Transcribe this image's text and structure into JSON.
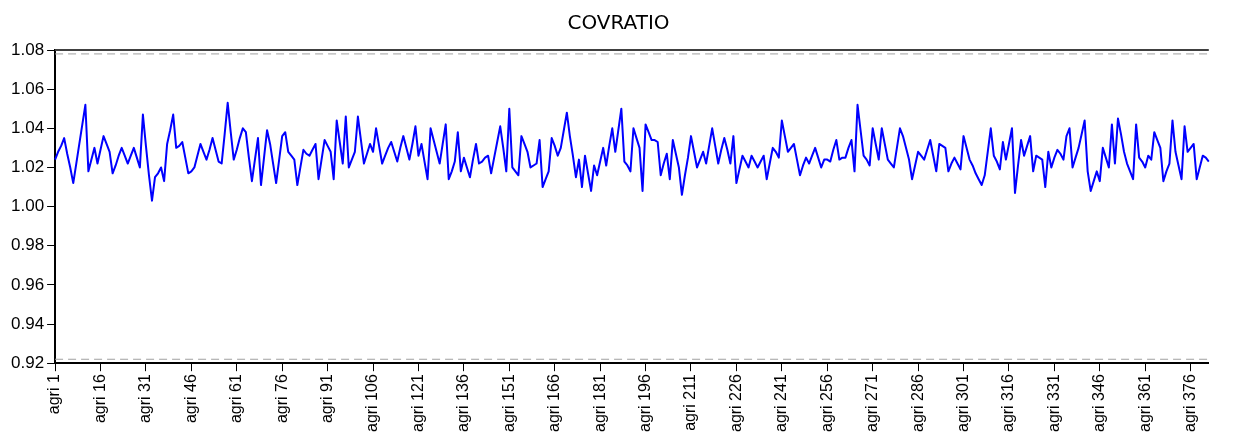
{
  "chart_data": {
    "type": "line",
    "title": "COVRATIO",
    "categories": [
      "agri 1",
      null,
      null,
      null,
      null,
      null,
      null,
      null,
      null,
      null,
      null,
      null,
      null,
      null,
      null,
      "agri 16",
      null,
      null,
      null,
      null,
      null,
      null,
      null,
      null,
      null,
      null,
      null,
      null,
      null,
      null,
      "agri 31",
      null,
      null,
      null,
      null,
      null,
      null,
      null,
      null,
      null,
      null,
      null,
      null,
      null,
      null,
      "agri 46",
      null,
      null,
      null,
      null,
      null,
      null,
      null,
      null,
      null,
      null,
      null,
      null,
      null,
      null,
      "agri 61",
      null,
      null,
      null,
      null,
      null,
      null,
      null,
      null,
      null,
      null,
      null,
      null,
      null,
      null,
      "agri 76",
      null,
      null,
      null,
      null,
      null,
      null,
      null,
      null,
      null,
      null,
      null,
      null,
      null,
      null,
      "agri 91",
      null,
      null,
      null,
      null,
      null,
      null,
      null,
      null,
      null,
      null,
      null,
      null,
      null,
      null,
      "agri 106",
      null,
      null,
      null,
      null,
      null,
      null,
      null,
      null,
      null,
      null,
      null,
      null,
      null,
      null,
      "agri 121",
      null,
      null,
      null,
      null,
      null,
      null,
      null,
      null,
      null,
      null,
      null,
      null,
      null,
      null,
      "agri 136",
      null,
      null,
      null,
      null,
      null,
      null,
      null,
      null,
      null,
      null,
      null,
      null,
      null,
      null,
      "agri 151",
      null,
      null,
      null,
      null,
      null,
      null,
      null,
      null,
      null,
      null,
      null,
      null,
      null,
      null,
      "agri 166",
      null,
      null,
      null,
      null,
      null,
      null,
      null,
      null,
      null,
      null,
      null,
      null,
      null,
      null,
      "agri 181",
      null,
      null,
      null,
      null,
      null,
      null,
      null,
      null,
      null,
      null,
      null,
      null,
      null,
      null,
      "agri 196",
      null,
      null,
      null,
      null,
      null,
      null,
      null,
      null,
      null,
      null,
      null,
      null,
      null,
      null,
      "agri 211",
      null,
      null,
      null,
      null,
      null,
      null,
      null,
      null,
      null,
      null,
      null,
      null,
      null,
      null,
      "agri 226",
      null,
      null,
      null,
      null,
      null,
      null,
      null,
      null,
      null,
      null,
      null,
      null,
      null,
      null,
      "agri 241",
      null,
      null,
      null,
      null,
      null,
      null,
      null,
      null,
      null,
      null,
      null,
      null,
      null,
      null,
      "agri 256",
      null,
      null,
      null,
      null,
      null,
      null,
      null,
      null,
      null,
      null,
      null,
      null,
      null,
      null,
      "agri 271",
      null,
      null,
      null,
      null,
      null,
      null,
      null,
      null,
      null,
      null,
      null,
      null,
      null,
      null,
      "agri 286",
      null,
      null,
      null,
      null,
      null,
      null,
      null,
      null,
      null,
      null,
      null,
      null,
      null,
      null,
      "agri 301",
      null,
      null,
      null,
      null,
      null,
      null,
      null,
      null,
      null,
      null,
      null,
      null,
      null,
      null,
      "agri 316",
      null,
      null,
      null,
      null,
      null,
      null,
      null,
      null,
      null,
      null,
      null,
      null,
      null,
      null,
      "agri 331",
      null,
      null,
      null,
      null,
      null,
      null,
      null,
      null,
      null,
      null,
      null,
      null,
      null,
      null,
      "agri 346",
      null,
      null,
      null,
      null,
      null,
      null,
      null,
      null,
      null,
      null,
      null,
      null,
      null,
      null,
      "agri 361",
      null,
      null,
      null,
      null,
      null,
      null,
      null,
      null,
      null,
      null,
      null,
      null,
      null,
      null,
      "agri 376",
      null,
      null,
      null,
      null,
      null,
      null
    ],
    "ylim": [
      0.92,
      1.08
    ],
    "yticks": [
      0.92,
      0.94,
      0.96,
      0.98,
      {
        "value": 1,
        "label": "1.00"
      },
      1.02,
      1.04,
      1.06,
      1.08
    ],
    "grid": false,
    "marker": "none",
    "line_style": "solid",
    "ref_lines": [
      {
        "axis": "y",
        "value": 1.078,
        "color": "#a0a0a0",
        "line_style": "dashed"
      },
      {
        "axis": "y",
        "value": 0.922,
        "color": "#a0a0a0",
        "line_style": "dashed"
      }
    ],
    "series": [
      {
        "color": "#0000ff",
        "values": [
          1.024,
          1.028,
          1.031,
          1.035,
          1.027,
          1.02,
          1.012,
          1.022,
          1.032,
          1.042,
          1.052,
          1.018,
          1.024,
          1.03,
          1.022,
          1.029,
          1.036,
          1.032,
          1.028,
          1.017,
          1.021,
          1.026,
          1.03,
          1.026,
          1.022,
          1.026,
          1.03,
          1.025,
          1.02,
          1.047,
          1.031,
          1.016,
          1.003,
          1.015,
          1.017,
          1.02,
          1.013,
          1.032,
          1.039,
          1.047,
          1.03,
          1.031,
          1.033,
          1.025,
          1.017,
          1.018,
          1.02,
          1.026,
          1.032,
          1.028,
          1.024,
          1.029,
          1.035,
          1.029,
          1.023,
          1.022,
          1.037,
          1.053,
          1.038,
          1.024,
          1.029,
          1.035,
          1.04,
          1.038,
          1.025,
          1.013,
          1.024,
          1.035,
          1.011,
          1.025,
          1.039,
          1.032,
          1.022,
          1.012,
          1.024,
          1.036,
          1.038,
          1.028,
          1.026,
          1.024,
          1.011,
          1.02,
          1.029,
          1.027,
          1.026,
          1.029,
          1.032,
          1.014,
          1.024,
          1.034,
          1.031,
          1.028,
          1.014,
          1.044,
          1.033,
          1.022,
          1.046,
          1.02,
          1.024,
          1.028,
          1.046,
          1.034,
          1.022,
          1.027,
          1.032,
          1.028,
          1.04,
          1.031,
          1.022,
          1.026,
          1.03,
          1.033,
          1.028,
          1.023,
          1.03,
          1.036,
          1.03,
          1.024,
          1.032,
          1.041,
          1.026,
          1.032,
          1.023,
          1.014,
          1.04,
          1.034,
          1.028,
          1.022,
          1.032,
          1.042,
          1.014,
          1.018,
          1.023,
          1.038,
          1.018,
          1.025,
          1.02,
          1.015,
          1.024,
          1.032,
          1.022,
          1.023,
          1.025,
          1.026,
          1.017,
          1.025,
          1.033,
          1.041,
          1.03,
          1.018,
          1.05,
          1.02,
          1.018,
          1.016,
          1.036,
          1.032,
          1.028,
          1.02,
          1.021,
          1.022,
          1.034,
          1.01,
          1.014,
          1.018,
          1.035,
          1.031,
          1.026,
          1.03,
          1.039,
          1.048,
          1.036,
          1.026,
          1.015,
          1.024,
          1.01,
          1.026,
          1.017,
          1.008,
          1.021,
          1.016,
          1.023,
          1.03,
          1.021,
          1.031,
          1.04,
          1.028,
          1.039,
          1.05,
          1.023,
          1.021,
          1.018,
          1.04,
          1.035,
          1.03,
          1.008,
          1.042,
          1.038,
          1.034,
          1.034,
          1.033,
          1.016,
          1.022,
          1.027,
          1.014,
          1.034,
          1.027,
          1.02,
          1.006,
          1.016,
          1.025,
          1.036,
          1.028,
          1.02,
          1.024,
          1.028,
          1.022,
          1.031,
          1.04,
          1.031,
          1.022,
          1.029,
          1.035,
          1.029,
          1.022,
          1.036,
          1.012,
          1.019,
          1.026,
          1.023,
          1.02,
          1.026,
          1.023,
          1.02,
          1.023,
          1.026,
          1.014,
          1.022,
          1.03,
          1.028,
          1.025,
          1.044,
          1.036,
          1.028,
          1.03,
          1.032,
          1.024,
          1.016,
          1.021,
          1.025,
          1.022,
          1.026,
          1.03,
          1.025,
          1.02,
          1.024,
          1.024,
          1.023,
          1.029,
          1.034,
          1.024,
          1.025,
          1.025,
          1.03,
          1.034,
          1.018,
          1.052,
          1.039,
          1.026,
          1.024,
          1.021,
          1.04,
          1.032,
          1.024,
          1.04,
          1.032,
          1.024,
          1.022,
          1.02,
          1.03,
          1.04,
          1.036,
          1.03,
          1.024,
          1.014,
          1.021,
          1.028,
          1.026,
          1.024,
          1.029,
          1.034,
          1.026,
          1.018,
          1.032,
          1.031,
          1.03,
          1.018,
          1.022,
          1.025,
          1.022,
          1.019,
          1.036,
          1.03,
          1.024,
          1.021,
          1.017,
          1.014,
          1.011,
          1.016,
          1.028,
          1.04,
          1.026,
          1.023,
          1.019,
          1.033,
          1.024,
          1.032,
          1.04,
          1.007,
          1.021,
          1.034,
          1.026,
          1.031,
          1.036,
          1.018,
          1.026,
          1.025,
          1.024,
          1.01,
          1.028,
          1.02,
          1.025,
          1.029,
          1.027,
          1.024,
          1.036,
          1.04,
          1.02,
          1.025,
          1.03,
          1.037,
          1.044,
          1.018,
          1.008,
          1.013,
          1.018,
          1.013,
          1.03,
          1.025,
          1.02,
          1.042,
          1.022,
          1.045,
          1.037,
          1.028,
          1.022,
          1.018,
          1.014,
          1.042,
          1.025,
          1.023,
          1.02,
          1.026,
          1.024,
          1.038,
          1.034,
          1.03,
          1.013,
          1.018,
          1.022,
          1.044,
          1.028,
          1.021,
          1.014,
          1.041,
          1.028,
          1.03,
          1.032,
          1.014,
          1.02,
          1.026,
          1.025,
          1.023
        ]
      }
    ]
  }
}
